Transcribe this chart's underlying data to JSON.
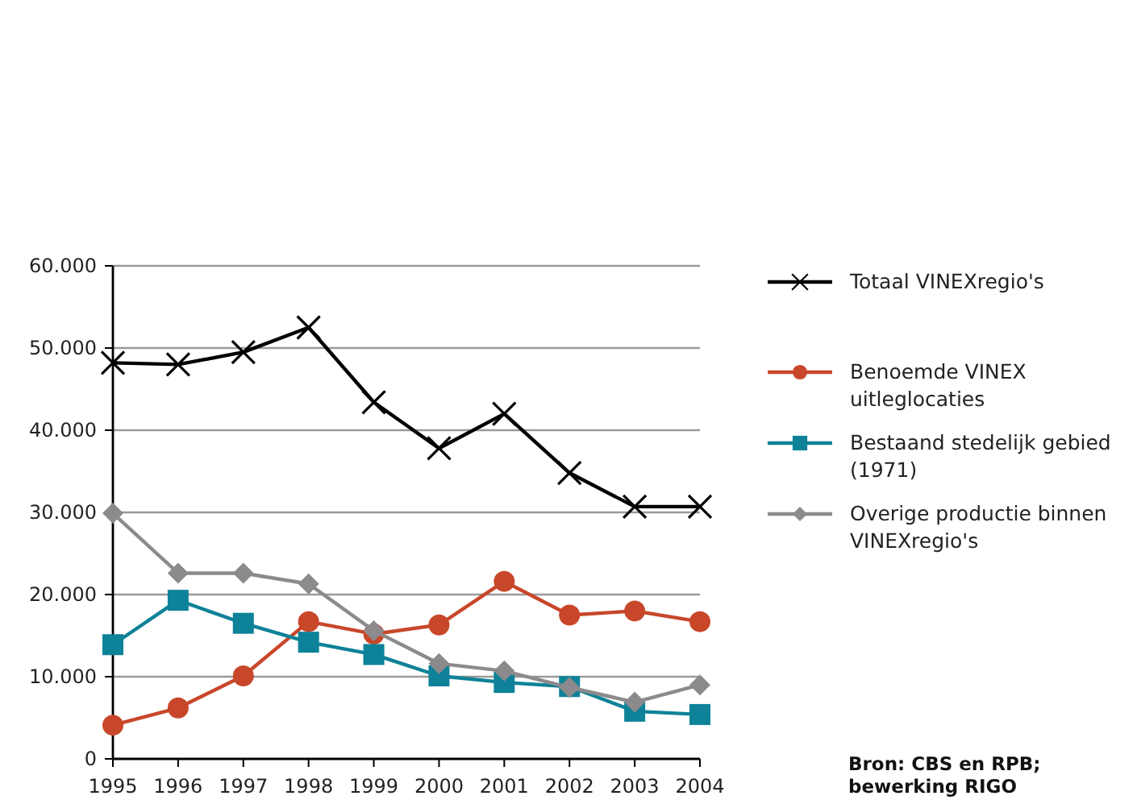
{
  "chart_data": {
    "type": "line",
    "categories": [
      "1995",
      "1996",
      "1997",
      "1998",
      "1999",
      "2000",
      "2001",
      "2002",
      "2003",
      "2004"
    ],
    "series": [
      {
        "name": "Totaal VINEXregio's",
        "color": "#000000",
        "marker": "cross",
        "values": [
          48200,
          48000,
          49500,
          52500,
          43400,
          37800,
          42000,
          34800,
          30700,
          30700
        ]
      },
      {
        "name": "Benoemde VINEX uitleglocaties",
        "color": "#c8472a",
        "marker": "circle",
        "values": [
          4100,
          6200,
          10100,
          16700,
          15200,
          16300,
          21600,
          17500,
          18000,
          16700
        ]
      },
      {
        "name": "Bestaand stedelijk gebied (1971)",
        "color": "#0e8298",
        "marker": "square",
        "values": [
          13900,
          19300,
          16500,
          14200,
          12700,
          10100,
          9300,
          8800,
          5800,
          5400
        ]
      },
      {
        "name": "Overige productie binnen VINEXregio's",
        "color": "#8c8a8c",
        "marker": "diamond",
        "values": [
          29900,
          22600,
          22600,
          21300,
          15600,
          11600,
          10700,
          8700,
          6900,
          9000
        ]
      }
    ],
    "ylim": [
      0,
      60000
    ],
    "yticks": [
      {
        "value": 0,
        "label": "0"
      },
      {
        "value": 10000,
        "label": "10.000"
      },
      {
        "value": 20000,
        "label": "20.000"
      },
      {
        "value": 30000,
        "label": "30.000"
      },
      {
        "value": 40000,
        "label": "40.000"
      },
      {
        "value": 50000,
        "label": "50.000"
      },
      {
        "value": 60000,
        "label": "60.000"
      }
    ],
    "grid": "y",
    "legend": "right",
    "line_style": "solid",
    "annotations": [
      "Bron: CBS en RPB; bewerking RIGO"
    ]
  }
}
